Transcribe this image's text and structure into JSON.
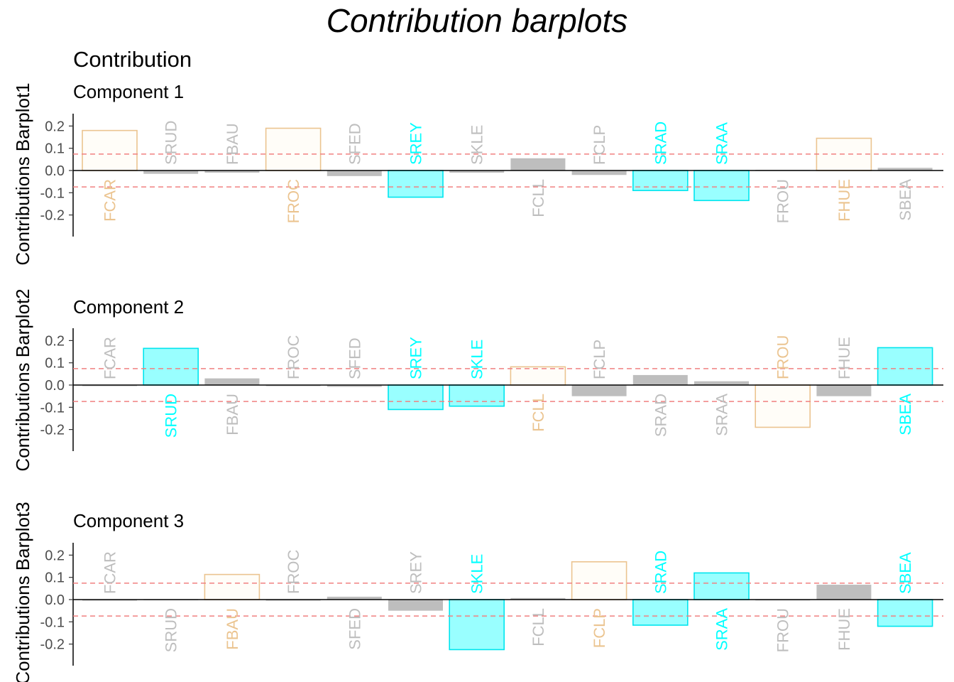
{
  "title": "Contribution barplots",
  "subtitle": "Contribution",
  "colors": {
    "positive_fill": "#FFFDF8",
    "positive_stroke": "#EBC490",
    "negative_fill": "#99FFFF",
    "negative_stroke": "#00E5EE",
    "neutral": "#BEBEBE",
    "threshold": "#F08080",
    "label_orange": "#EBC490",
    "label_cyan": "#00FFFF",
    "label_grey": "#BEBEBE"
  },
  "chart_data": [
    {
      "type": "bar",
      "panel_title": "Component 1",
      "ylabel": "Contributions Barplot1",
      "ylim": [
        -0.3,
        0.26
      ],
      "yticks": [
        "0.2",
        "0.1",
        "0.0",
        "-0.1",
        "-0.2"
      ],
      "ytick_values": [
        0.2,
        0.1,
        0.0,
        -0.1,
        -0.2
      ],
      "threshold": 0.074,
      "categories": [
        "FCAR",
        "SRUD",
        "FBAU",
        "FROC",
        "SFED",
        "SREY",
        "SKLE",
        "FCLL",
        "FCLP",
        "SRAD",
        "SRAA",
        "FROU",
        "FHUE",
        "SBEA"
      ],
      "values": [
        0.18,
        -0.015,
        -0.01,
        0.19,
        -0.025,
        -0.12,
        -0.01,
        0.055,
        -0.02,
        -0.09,
        -0.135,
        0.003,
        0.145,
        0.012
      ],
      "roles": [
        "pos",
        "neu",
        "neu",
        "pos",
        "neu",
        "neg",
        "neu",
        "neu",
        "neu",
        "neg",
        "neg",
        "neu",
        "pos",
        "neu"
      ]
    },
    {
      "type": "bar",
      "panel_title": "Component 2",
      "ylabel": "Contributions Barplot2",
      "ylim": [
        -0.3,
        0.26
      ],
      "yticks": [
        "0.2",
        "0.1",
        "0.0",
        "-0.1",
        "-0.2"
      ],
      "ytick_values": [
        0.2,
        0.1,
        0.0,
        -0.1,
        -0.2
      ],
      "threshold": 0.074,
      "categories": [
        "FCAR",
        "SRUD",
        "FBAU",
        "FROC",
        "SFED",
        "SREY",
        "SKLE",
        "FCLL",
        "FCLP",
        "SRAD",
        "SRAA",
        "FROU",
        "FHUE",
        "SBEA"
      ],
      "values": [
        0.0,
        0.165,
        0.03,
        0.0,
        -0.008,
        -0.11,
        -0.095,
        0.082,
        -0.05,
        0.045,
        0.017,
        -0.19,
        -0.05,
        0.168
      ],
      "roles": [
        "neu",
        "neg",
        "neu",
        "neu",
        "neu",
        "neg",
        "neg",
        "pos",
        "neu",
        "neu",
        "neu",
        "pos",
        "neu",
        "neg"
      ]
    },
    {
      "type": "bar",
      "panel_title": "Component 3",
      "ylabel": "Contributions Barplot3",
      "ylim": [
        -0.3,
        0.26
      ],
      "yticks": [
        "0.2",
        "0.1",
        "0.0",
        "-0.1",
        "-0.2"
      ],
      "ytick_values": [
        0.2,
        0.1,
        0.0,
        -0.1,
        -0.2
      ],
      "threshold": 0.074,
      "categories": [
        "FCAR",
        "SRUD",
        "FBAU",
        "FROC",
        "SFED",
        "SREY",
        "SKLE",
        "FCLL",
        "FCLP",
        "SRAD",
        "SRAA",
        "FROU",
        "FHUE",
        "SBEA"
      ],
      "values": [
        -0.002,
        0.002,
        0.113,
        -0.003,
        0.013,
        -0.05,
        -0.225,
        0.007,
        0.17,
        -0.115,
        0.12,
        0.001,
        0.067,
        -0.12
      ],
      "roles": [
        "neu",
        "neu",
        "pos",
        "neu",
        "neu",
        "neu",
        "neg",
        "neu",
        "pos",
        "neg",
        "neg",
        "neu",
        "neu",
        "neg"
      ]
    }
  ]
}
